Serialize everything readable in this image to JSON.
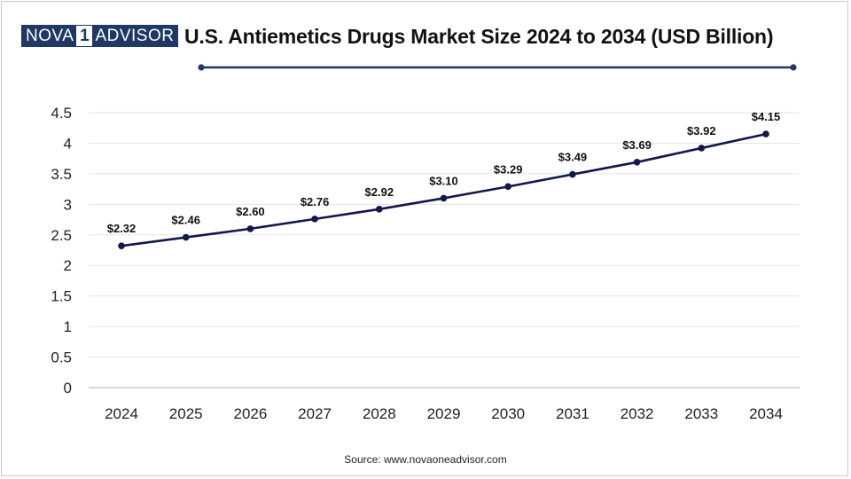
{
  "brand": {
    "left": "NOVA",
    "mark": "1",
    "right": "ADVISOR"
  },
  "source": "Source: www.novaoneadvisor.com",
  "colors": {
    "line": "#13174a",
    "grid": "#e4e4e4",
    "axis": "#bdbdbd",
    "brand": "#1f3864"
  },
  "chart_data": {
    "type": "line",
    "title": "U.S. Antiemetics Drugs Market Size 2024 to 2034 (USD Billion)",
    "xlabel": "",
    "ylabel": "",
    "categories": [
      "2024",
      "2025",
      "2026",
      "2027",
      "2028",
      "2029",
      "2030",
      "2031",
      "2032",
      "2033",
      "2034"
    ],
    "series": [
      {
        "name": "Market Size (USD Billion)",
        "values": [
          2.32,
          2.46,
          2.6,
          2.76,
          2.92,
          3.1,
          3.29,
          3.49,
          3.69,
          3.92,
          4.15
        ],
        "labels": [
          "$2.32",
          "$2.46",
          "$2.60",
          "$2.76",
          "$2.92",
          "$3.10",
          "$3.29",
          "$3.49",
          "$3.69",
          "$3.92",
          "$4.15"
        ]
      }
    ],
    "yticks": [
      "0",
      "0.5",
      "1",
      "1.5",
      "2",
      "2.5",
      "3",
      "3.5",
      "4",
      "4.5"
    ],
    "ylim": [
      0,
      4.5
    ],
    "grid": true,
    "legend": "none"
  }
}
